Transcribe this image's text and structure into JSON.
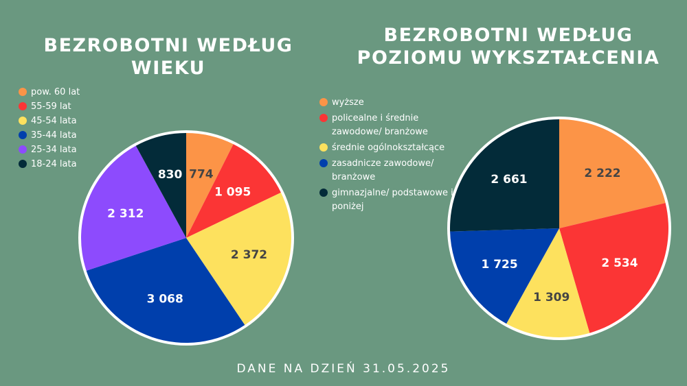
{
  "footer": "DANE NA DZIEŃ 31.05.2025",
  "chart_data": [
    {
      "type": "pie",
      "title": "BEZROBOTNI WEDŁUG WIEKU",
      "categories": [
        "pow. 60 lat",
        "55-59 lat",
        "45-54 lata",
        "35-44 lata",
        "25-34 lata",
        "18-24 lata"
      ],
      "values": [
        774,
        1095,
        2372,
        3068,
        2312,
        830
      ],
      "value_labels": [
        "774",
        "1 095",
        "2 372",
        "3 068",
        "2 312",
        "830"
      ],
      "colors": [
        "#fc9447",
        "#fb3535",
        "#fde15e",
        "#003fac",
        "#8d4bfd",
        "#032b39"
      ],
      "label_colors": [
        "#444444",
        "#ffffff",
        "#444444",
        "#ffffff",
        "#ffffff",
        "#ffffff"
      ],
      "legend_position": "top-left"
    },
    {
      "type": "pie",
      "title": "BEZROBOTNI WEDŁUG POZIOMU WYKSZTAŁCENIA",
      "categories": [
        "wyższe",
        "policealne i średnie zawodowe/ branżowe",
        "średnie ogólnokształcące",
        "zasadnicze zawodowe/ branżowe",
        "gimnazjalne/ podstawowe i poniżej"
      ],
      "values": [
        2222,
        2534,
        1309,
        1725,
        2661
      ],
      "value_labels": [
        "2 222",
        "2 534",
        "1 309",
        "1 725",
        "2 661"
      ],
      "colors": [
        "#fc9447",
        "#fb3535",
        "#fde15e",
        "#003fac",
        "#032b39"
      ],
      "label_colors": [
        "#444444",
        "#ffffff",
        "#444444",
        "#ffffff",
        "#ffffff"
      ],
      "legend_position": "left"
    }
  ]
}
